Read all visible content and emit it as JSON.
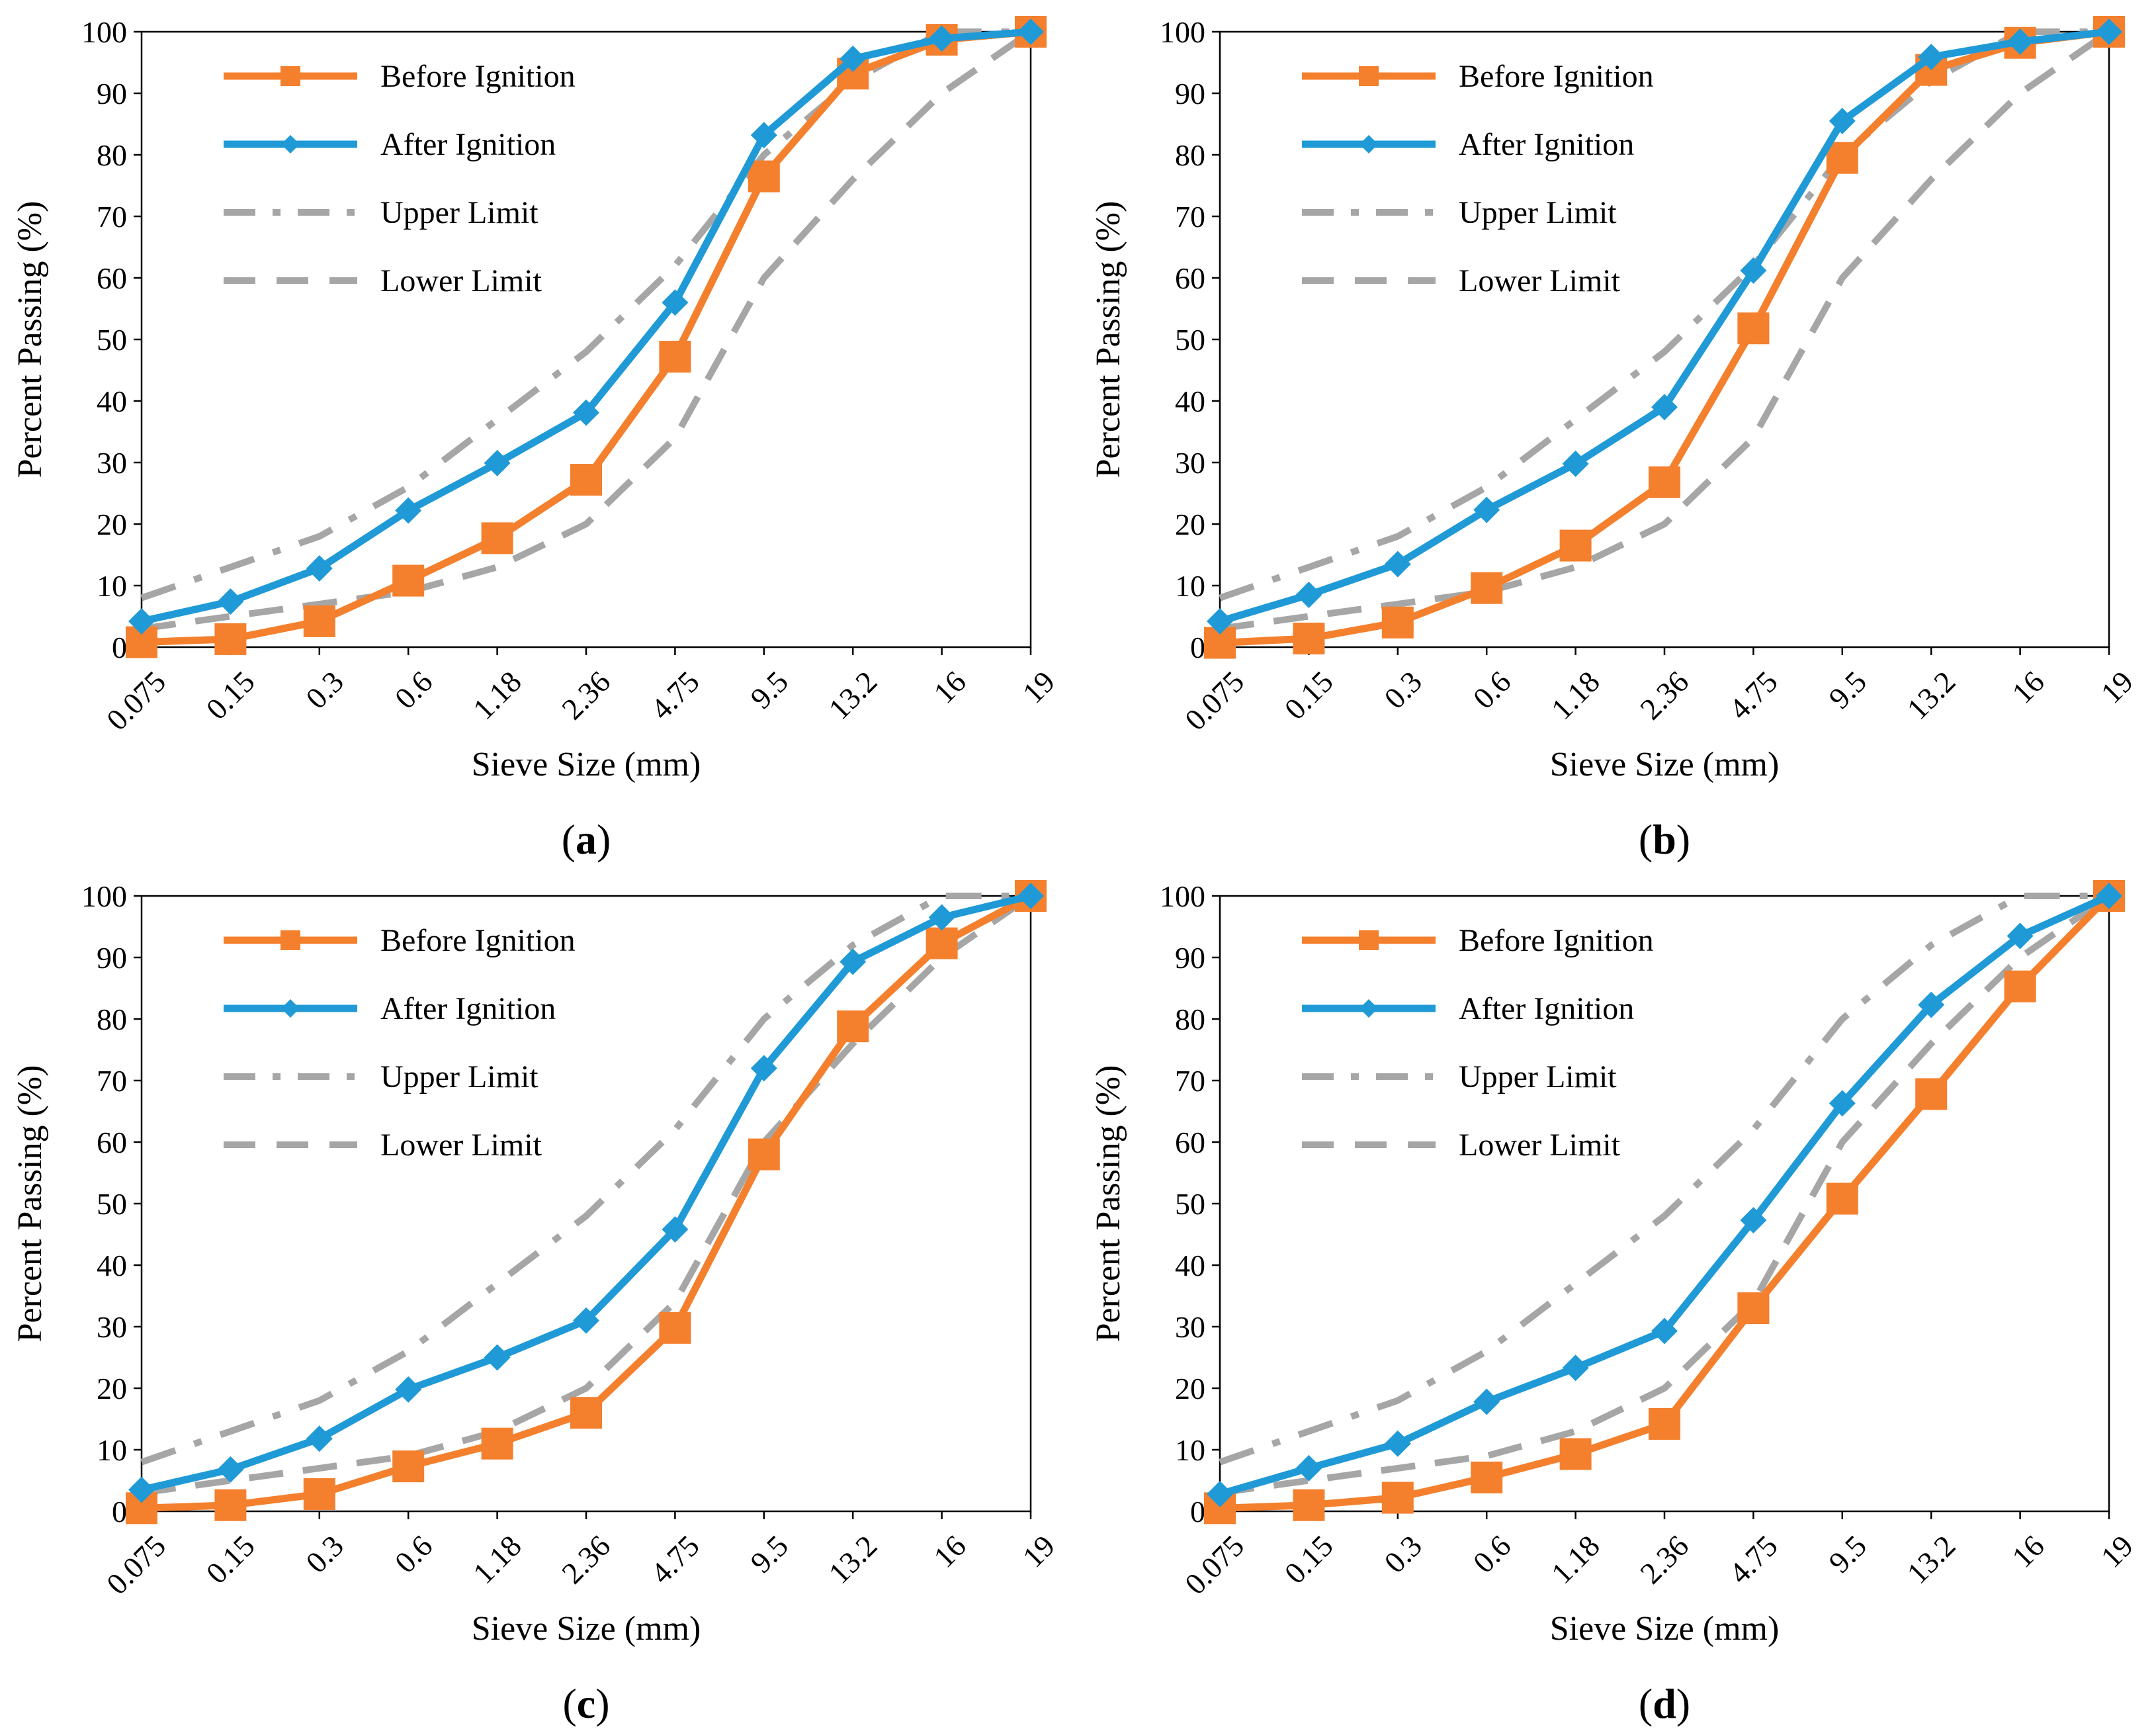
{
  "chart_data": [
    {
      "type": "line",
      "panel_label": "a",
      "categories": [
        "0.075",
        "0.15",
        "0.3",
        "0.6",
        "1.18",
        "2.36",
        "4.75",
        "9.5",
        "13.2",
        "16",
        "19"
      ],
      "xlabel": "Sieve Size (mm)",
      "ylabel": "Percent Passing (%)",
      "ylim": [
        0,
        100
      ],
      "yticks": [
        "0",
        "10",
        "20",
        "30",
        "40",
        "50",
        "60",
        "70",
        "80",
        "90",
        "100"
      ],
      "grid": false,
      "legend_position": "top-left",
      "series": [
        {
          "name": "Before Ignition",
          "values": [
            0.8,
            1.3,
            4.2,
            10.8,
            17.7,
            27.2,
            47.2,
            76.5,
            93.2,
            98.7,
            100
          ],
          "color": "#F4802E",
          "marker": "square",
          "style": "solid"
        },
        {
          "name": "After Ignition",
          "values": [
            4.2,
            7.4,
            12.8,
            22.2,
            29.9,
            38.1,
            56.0,
            83.2,
            95.6,
            98.9,
            100
          ],
          "color": "#1F9AD6",
          "marker": "diamond",
          "style": "solid"
        },
        {
          "name": "Upper Limit",
          "values": [
            8,
            13,
            18,
            26,
            37,
            48,
            62,
            80,
            92,
            100,
            100
          ],
          "color": "#A6A6A6",
          "marker": "none",
          "style": "dashdot"
        },
        {
          "name": "Lower Limit",
          "values": [
            3,
            5,
            7,
            9,
            13,
            20,
            34,
            60,
            76,
            90,
            100
          ],
          "color": "#A6A6A6",
          "marker": "none",
          "style": "dashed"
        }
      ]
    },
    {
      "type": "line",
      "panel_label": "b",
      "categories": [
        "0.075",
        "0.15",
        "0.3",
        "0.6",
        "1.18",
        "2.36",
        "4.75",
        "9.5",
        "13.2",
        "16",
        "19"
      ],
      "xlabel": "Sieve Size (mm)",
      "ylabel": "Percent Passing (%)",
      "ylim": [
        0,
        100
      ],
      "yticks": [
        "0",
        "10",
        "20",
        "30",
        "40",
        "50",
        "60",
        "70",
        "80",
        "90",
        "100"
      ],
      "grid": false,
      "legend_position": "top-left",
      "series": [
        {
          "name": "Before Ignition",
          "values": [
            0.7,
            1.4,
            4.0,
            9.6,
            16.5,
            26.8,
            51.8,
            79.5,
            93.8,
            98.2,
            100
          ],
          "color": "#F4802E",
          "marker": "square",
          "style": "solid"
        },
        {
          "name": "After Ignition",
          "values": [
            4.2,
            8.5,
            13.5,
            22.3,
            29.8,
            39.0,
            61.2,
            85.5,
            95.9,
            98.4,
            100
          ],
          "color": "#1F9AD6",
          "marker": "diamond",
          "style": "solid"
        },
        {
          "name": "Upper Limit",
          "values": [
            8,
            13,
            18,
            26,
            37,
            48,
            62,
            80,
            92,
            100,
            100
          ],
          "color": "#A6A6A6",
          "marker": "none",
          "style": "dashdot"
        },
        {
          "name": "Lower Limit",
          "values": [
            3,
            5,
            7,
            9,
            13,
            20,
            34,
            60,
            76,
            90,
            100
          ],
          "color": "#A6A6A6",
          "marker": "none",
          "style": "dashed"
        }
      ]
    },
    {
      "type": "line",
      "panel_label": "c",
      "categories": [
        "0.075",
        "0.15",
        "0.3",
        "0.6",
        "1.18",
        "2.36",
        "4.75",
        "9.5",
        "13.2",
        "16",
        "19"
      ],
      "xlabel": "Sieve Size (mm)",
      "ylabel": "Percent Passing (%)",
      "ylim": [
        0,
        100
      ],
      "yticks": [
        "0",
        "10",
        "20",
        "30",
        "40",
        "50",
        "60",
        "70",
        "80",
        "90",
        "100"
      ],
      "grid": false,
      "legend_position": "top-left",
      "series": [
        {
          "name": "Before Ignition",
          "values": [
            0.5,
            1.0,
            2.8,
            7.3,
            11.0,
            16.0,
            29.8,
            58.0,
            78.8,
            92.3,
            100
          ],
          "color": "#F4802E",
          "marker": "square",
          "style": "solid"
        },
        {
          "name": "After Ignition",
          "values": [
            3.5,
            6.8,
            11.8,
            19.8,
            25.0,
            31.0,
            45.8,
            72.0,
            89.3,
            96.5,
            100
          ],
          "color": "#1F9AD6",
          "marker": "diamond",
          "style": "solid"
        },
        {
          "name": "Upper Limit",
          "values": [
            8,
            13,
            18,
            26,
            37,
            48,
            62,
            80,
            92,
            100,
            100
          ],
          "color": "#A6A6A6",
          "marker": "none",
          "style": "dashdot"
        },
        {
          "name": "Lower Limit",
          "values": [
            3,
            5,
            7,
            9,
            13,
            20,
            34,
            60,
            76,
            90,
            100
          ],
          "color": "#A6A6A6",
          "marker": "none",
          "style": "dashed"
        }
      ]
    },
    {
      "type": "line",
      "panel_label": "d",
      "categories": [
        "0.075",
        "0.15",
        "0.3",
        "0.6",
        "1.18",
        "2.36",
        "4.75",
        "9.5",
        "13.2",
        "16",
        "19"
      ],
      "xlabel": "Sieve Size (mm)",
      "ylabel": "Percent Passing (%)",
      "ylim": [
        0,
        100
      ],
      "yticks": [
        "0",
        "10",
        "20",
        "30",
        "40",
        "50",
        "60",
        "70",
        "80",
        "90",
        "100"
      ],
      "grid": false,
      "legend_position": "top-left",
      "series": [
        {
          "name": "Before Ignition",
          "values": [
            0.5,
            1.0,
            2.2,
            5.5,
            9.3,
            14.2,
            33.0,
            50.8,
            67.8,
            85.3,
            100
          ],
          "color": "#F4802E",
          "marker": "square",
          "style": "solid"
        },
        {
          "name": "After Ignition",
          "values": [
            2.8,
            7.0,
            11.0,
            17.8,
            23.3,
            29.3,
            47.3,
            66.3,
            82.3,
            93.5,
            100
          ],
          "color": "#1F9AD6",
          "marker": "diamond",
          "style": "solid"
        },
        {
          "name": "Upper Limit",
          "values": [
            8,
            13,
            18,
            26,
            37,
            48,
            62,
            80,
            92,
            100,
            100
          ],
          "color": "#A6A6A6",
          "marker": "none",
          "style": "dashdot"
        },
        {
          "name": "Lower Limit",
          "values": [
            3,
            5,
            7,
            9,
            13,
            20,
            34,
            60,
            76,
            90,
            100
          ],
          "color": "#A6A6A6",
          "marker": "none",
          "style": "dashed"
        }
      ]
    }
  ]
}
